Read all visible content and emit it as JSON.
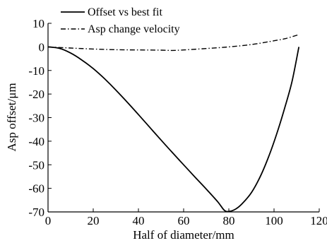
{
  "chart_data": {
    "type": "line",
    "title": "",
    "xlabel": "Half of diameter/mm",
    "ylabel": "Asp offset/μm",
    "xlim": [
      0,
      120
    ],
    "ylim": [
      -70,
      10
    ],
    "x_ticks": [
      "0",
      "20",
      "40",
      "60",
      "80",
      "100",
      "120"
    ],
    "y_ticks": [
      "10",
      "0",
      "-10",
      "-20",
      "-30",
      "-40",
      "-50",
      "-60",
      "-70"
    ],
    "grid": false,
    "legend_position": "top-center",
    "series": [
      {
        "name": "Offset vs best fit",
        "line_style": "solid",
        "color": "#000000",
        "points": [
          [
            0,
            0
          ],
          [
            5,
            -0.6
          ],
          [
            10,
            -2.6
          ],
          [
            15,
            -5.6
          ],
          [
            20,
            -9.2
          ],
          [
            25,
            -13.5
          ],
          [
            30,
            -18.3
          ],
          [
            35,
            -23.4
          ],
          [
            40,
            -28.7
          ],
          [
            45,
            -34.1
          ],
          [
            50,
            -39.5
          ],
          [
            55,
            -44.8
          ],
          [
            60,
            -50.0
          ],
          [
            65,
            -55.2
          ],
          [
            70,
            -60.3
          ],
          [
            75,
            -65.6
          ],
          [
            78,
            -69.3
          ],
          [
            80,
            -69.8
          ],
          [
            83,
            -68.8
          ],
          [
            86,
            -66.4
          ],
          [
            90,
            -61.8
          ],
          [
            94,
            -54.8
          ],
          [
            98,
            -45.6
          ],
          [
            102,
            -34.5
          ],
          [
            105,
            -25.0
          ],
          [
            108,
            -14.5
          ],
          [
            111,
            0
          ]
        ]
      },
      {
        "name": "Asp change velocity",
        "line_style": "dash-dot",
        "color": "#000000",
        "points": [
          [
            0,
            0
          ],
          [
            10,
            -0.5
          ],
          [
            20,
            -0.9
          ],
          [
            30,
            -1.2
          ],
          [
            40,
            -1.3
          ],
          [
            50,
            -1.4
          ],
          [
            55,
            -1.5
          ],
          [
            60,
            -1.3
          ],
          [
            70,
            -0.7
          ],
          [
            80,
            0.0
          ],
          [
            90,
            1.0
          ],
          [
            100,
            2.6
          ],
          [
            105,
            3.5
          ],
          [
            111,
            5.2
          ]
        ]
      }
    ]
  }
}
